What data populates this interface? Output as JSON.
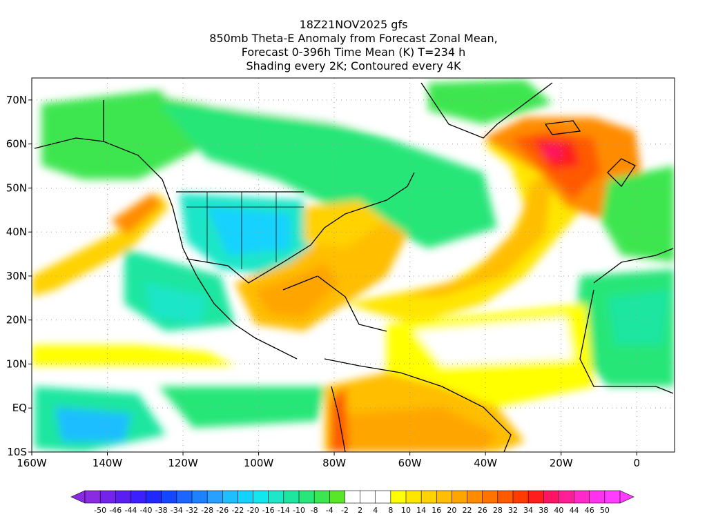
{
  "title": {
    "lines": [
      "18Z21NOV2025 gfs",
      "850mb Theta-E Anomaly from Forecast Zonal Mean,",
      "Forecast 0-396h Time Mean (K) T=234 h",
      "Shading every 2K; Contoured every 4K"
    ]
  },
  "map": {
    "lon_range": [
      -160,
      10
    ],
    "lat_range": [
      -10,
      75
    ],
    "x_ticks": [
      {
        "lon": -160,
        "label": "160W"
      },
      {
        "lon": -140,
        "label": "140W"
      },
      {
        "lon": -120,
        "label": "120W"
      },
      {
        "lon": -100,
        "label": "100W"
      },
      {
        "lon": -80,
        "label": "80W"
      },
      {
        "lon": -60,
        "label": "60W"
      },
      {
        "lon": -40,
        "label": "40W"
      },
      {
        "lon": -20,
        "label": "20W"
      },
      {
        "lon": 0,
        "label": "0"
      }
    ],
    "y_ticks": [
      {
        "lat": 70,
        "label": "70N"
      },
      {
        "lat": 60,
        "label": "60N"
      },
      {
        "lat": 50,
        "label": "50N"
      },
      {
        "lat": 40,
        "label": "40N"
      },
      {
        "lat": 30,
        "label": "30N"
      },
      {
        "lat": 20,
        "label": "20N"
      },
      {
        "lat": 10,
        "label": "10N"
      },
      {
        "lat": 0,
        "label": "EQ"
      },
      {
        "lat": -10,
        "label": "10S"
      }
    ],
    "grid": "dotted"
  },
  "colorbar": {
    "labels": [
      "-50",
      "-46",
      "-44",
      "-40",
      "-38",
      "-34",
      "-32",
      "-28",
      "-26",
      "-22",
      "-20",
      "-16",
      "-14",
      "-10",
      "-8",
      "-4",
      "-2",
      "2",
      "4",
      "8",
      "10",
      "14",
      "16",
      "20",
      "22",
      "26",
      "28",
      "32",
      "34",
      "38",
      "40",
      "44",
      "46",
      "50"
    ],
    "colors": [
      "#8a2be2",
      "#7323ea",
      "#5a1ef0",
      "#3c1eff",
      "#1e28ff",
      "#1446ff",
      "#1e64ff",
      "#1e82ff",
      "#28a0ff",
      "#1ebeff",
      "#14d2ff",
      "#14e6f0",
      "#1ee6c8",
      "#1ee6a0",
      "#28e678",
      "#3ce650",
      "#5ae628",
      "#ffffff",
      "#ffffff",
      "#ffffff",
      "#ffff00",
      "#ffe600",
      "#ffd200",
      "#ffbe00",
      "#ffa500",
      "#ff8c00",
      "#ff7300",
      "#ff5a00",
      "#ff3c00",
      "#ff1e1e",
      "#ff1464",
      "#ff1e96",
      "#ff28c8",
      "#ff32f0",
      "#ff3cff"
    ]
  }
}
